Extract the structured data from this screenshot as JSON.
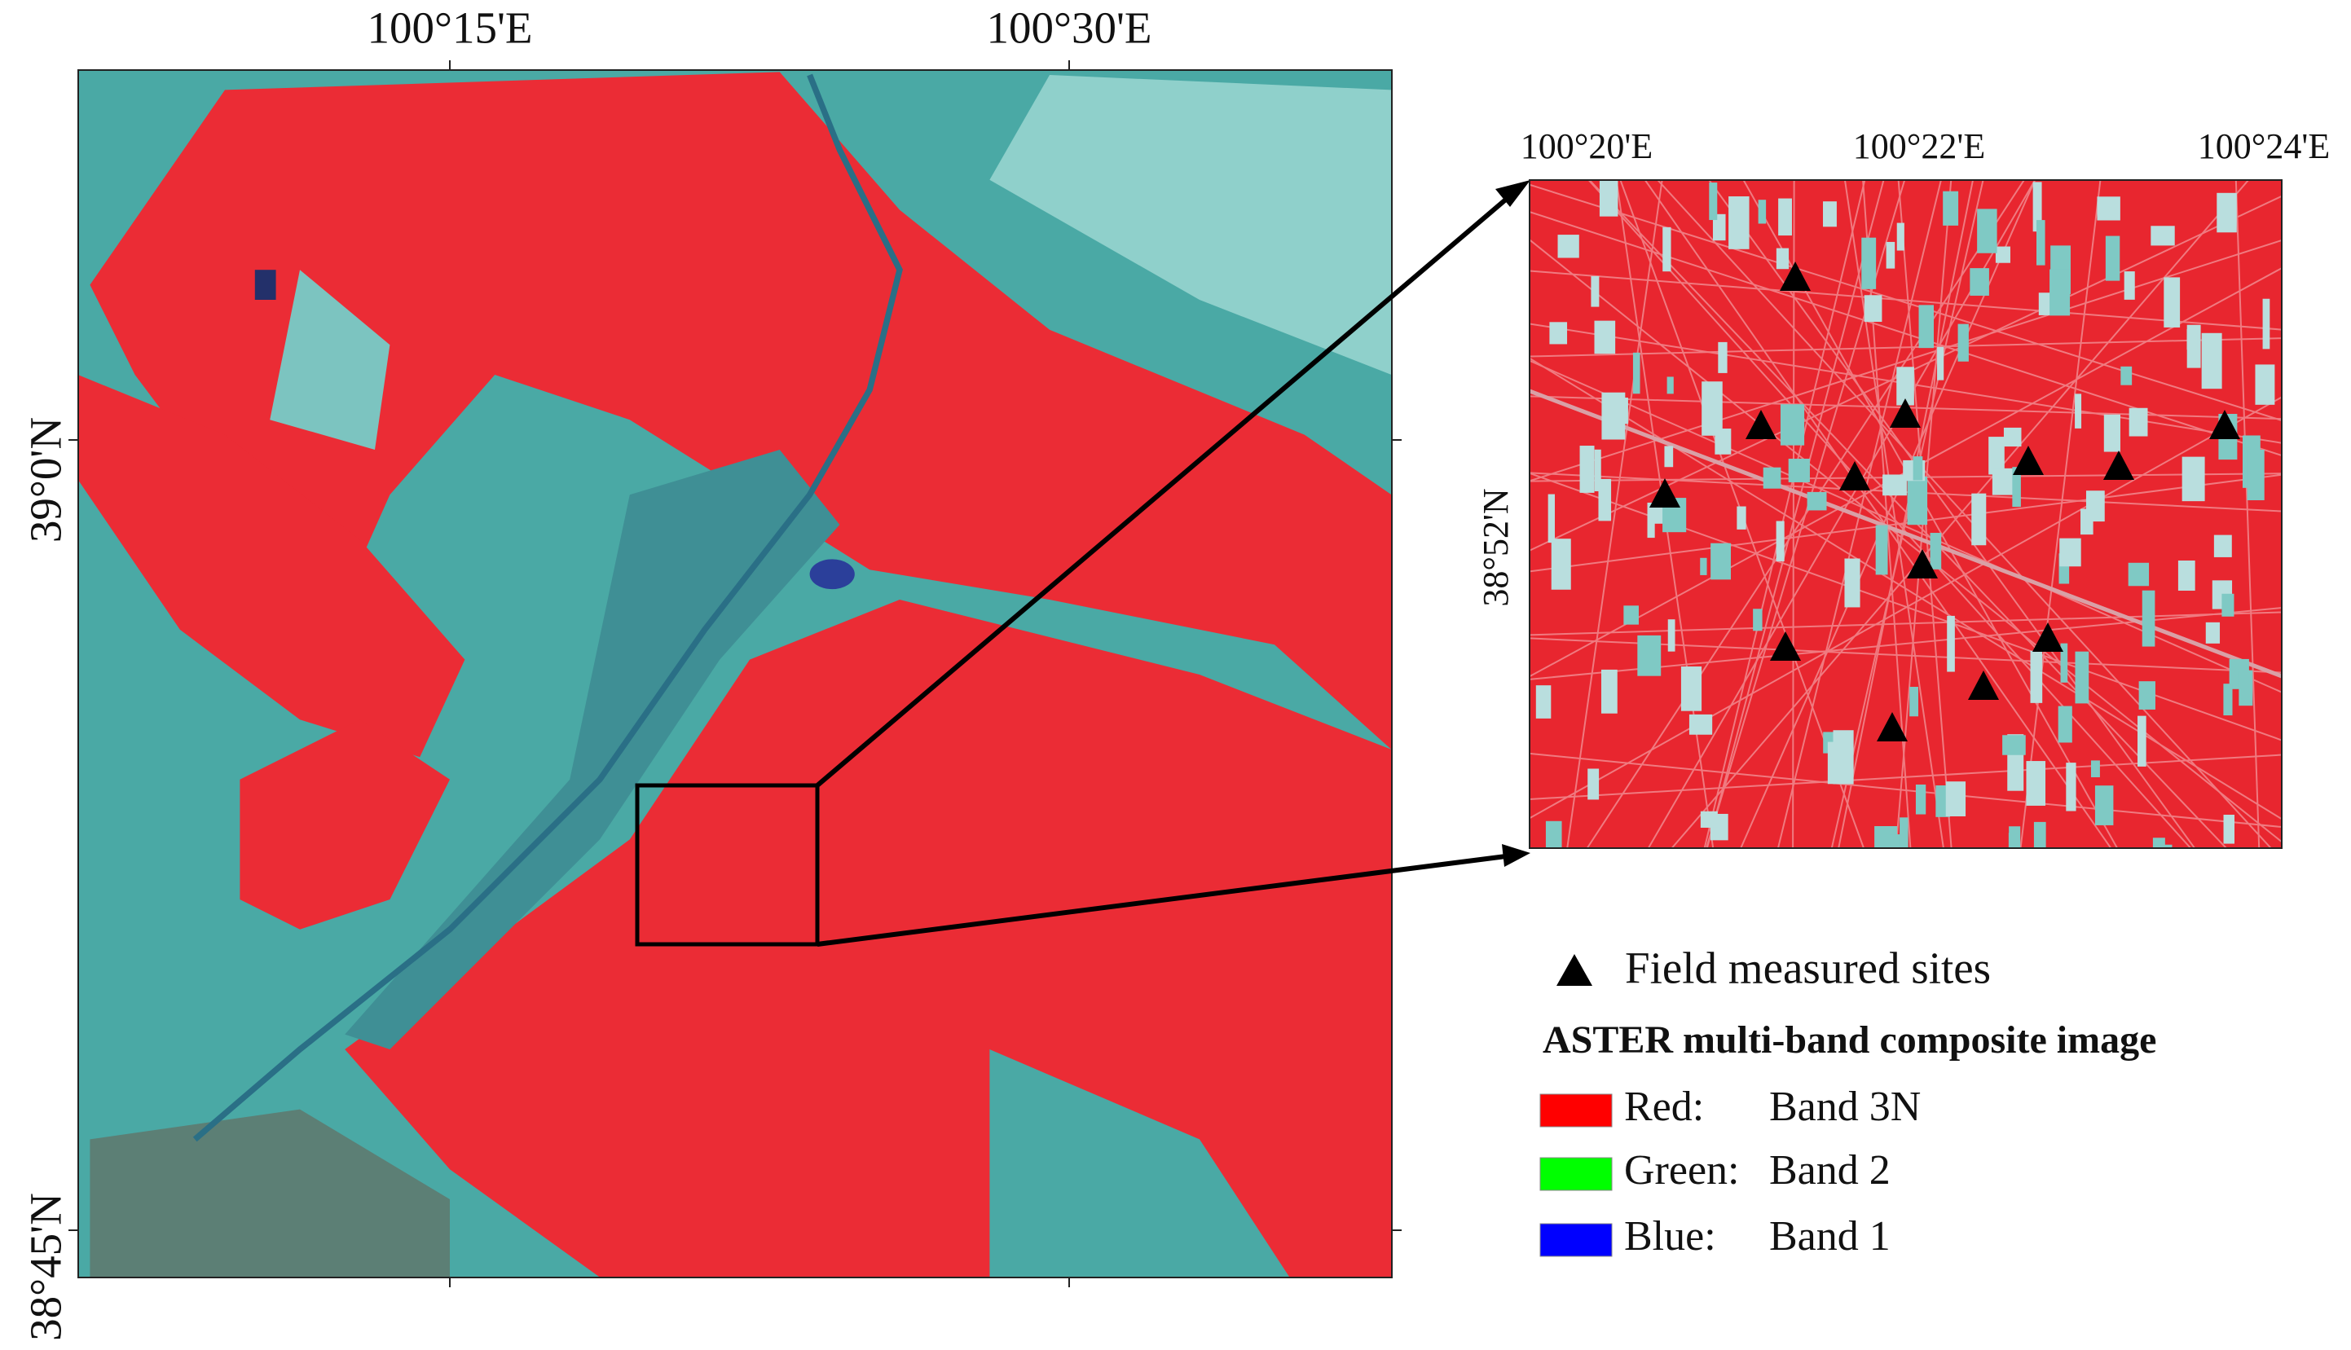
{
  "main_map": {
    "x_labels": [
      "100°15'E",
      "100°30'E"
    ],
    "y_labels": [
      "39°0'N",
      "38°45'N"
    ]
  },
  "inset_map": {
    "x_labels": [
      "100°20'E",
      "100°22'E",
      "100°24'E"
    ],
    "y_labels": [
      "38°52'N"
    ]
  },
  "legend": {
    "sites": "Field measured sites",
    "title": "ASTER multi-band composite image",
    "bands": [
      {
        "channel": "Red:",
        "band": "Band 3N",
        "color": "#ff0000"
      },
      {
        "channel": "Green:",
        "band": "Band 2",
        "color": "#00ff00"
      },
      {
        "channel": "Blue:",
        "band": "Band 1",
        "color": "#0000ff"
      }
    ]
  }
}
